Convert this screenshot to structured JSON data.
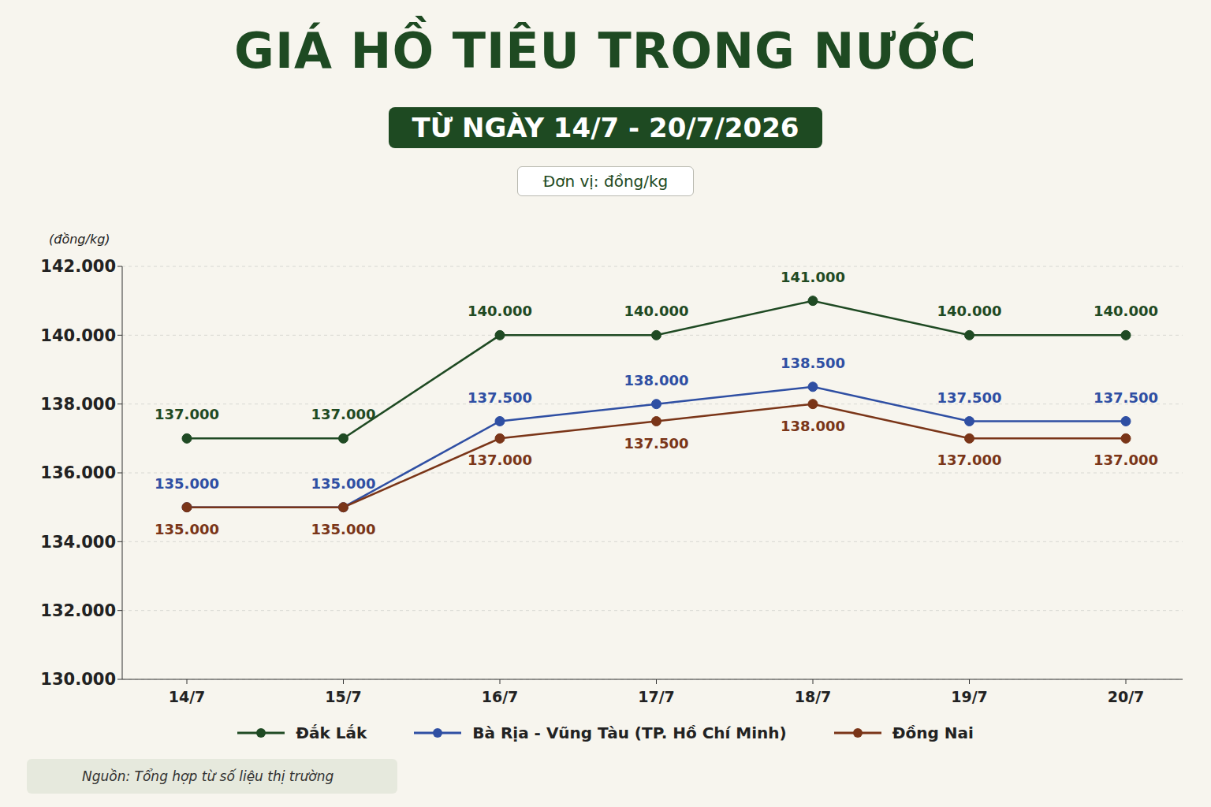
{
  "chart_data": {
    "type": "line",
    "title": "GIÁ HỒ TIÊU TRONG NƯỚC",
    "subtitle": "TỪ NGÀY 14/7 - 20/7/2026",
    "unit_note": "Đơn vị: đồng/kg",
    "y_label": "(đồng/kg)",
    "source": "Nguồn: Tổng hợp từ số liệu thị trường",
    "categories": [
      "14/7",
      "15/7",
      "16/7",
      "17/7",
      "18/7",
      "19/7",
      "20/7"
    ],
    "series": [
      {
        "name": "Đắk Lắk",
        "color": "#1f4a23",
        "marker": "circle",
        "values": [
          137000,
          137000,
          140000,
          140000,
          141000,
          140000,
          140000
        ],
        "value_labels": [
          "137.000",
          "137.000",
          "140.000",
          "140.000",
          "141.000",
          "140.000",
          "140.000"
        ]
      },
      {
        "name": "Bà Rịa - Vũng Tàu (TP. Hồ Chí Minh)",
        "color": "#2f4fa3",
        "marker": "circle",
        "values": [
          135000,
          135000,
          137500,
          138000,
          138500,
          137500,
          137500
        ],
        "value_labels": [
          "135.000",
          "135.000",
          "137.500",
          "138.000",
          "138.500",
          "137.500",
          "137.500"
        ]
      },
      {
        "name": "Đồng Nai",
        "color": "#7a3518",
        "marker": "circle",
        "values": [
          135000,
          135000,
          137000,
          137500,
          138000,
          137000,
          137000
        ],
        "value_labels": [
          "135.000",
          "135.000",
          "137.000",
          "137.500",
          "138.000",
          "137.000",
          "137.000"
        ]
      }
    ],
    "ylim": [
      130000,
      142000
    ],
    "yticks": [
      {
        "value": 130000,
        "label": "130.000"
      },
      {
        "value": 132000,
        "label": "132.000"
      },
      {
        "value": 134000,
        "label": "134.000"
      },
      {
        "value": 136000,
        "label": "136.000"
      },
      {
        "value": 138000,
        "label": "138.000"
      },
      {
        "value": 140000,
        "label": "140.000"
      },
      {
        "value": 142000,
        "label": "142.000"
      }
    ],
    "grid": true,
    "data_labels": true,
    "legend": "bottom"
  }
}
